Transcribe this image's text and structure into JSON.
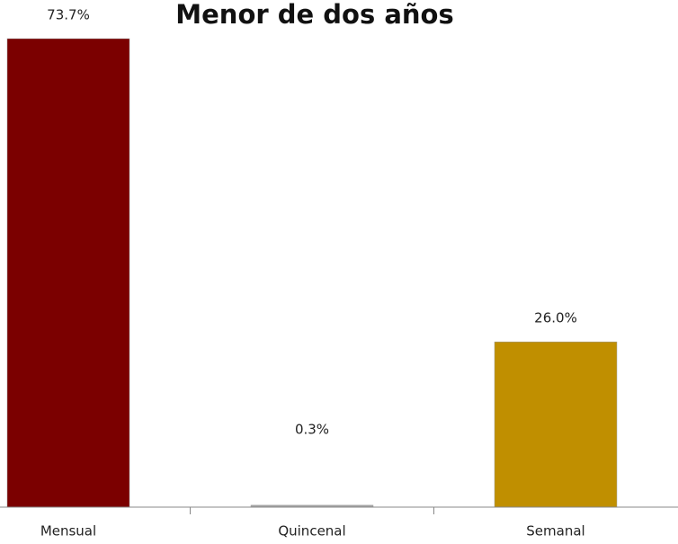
{
  "chart_data": {
    "type": "bar",
    "title": "Menor de dos años",
    "categories": [
      "Mensual",
      "Quincenal",
      "Semanal"
    ],
    "values": [
      73.7,
      0.3,
      26.0
    ],
    "value_labels": [
      "73.7%",
      "0.3%",
      "26.0%"
    ],
    "colors": [
      "#7b0000",
      "#a6a6a6",
      "#c08f00"
    ]
  }
}
